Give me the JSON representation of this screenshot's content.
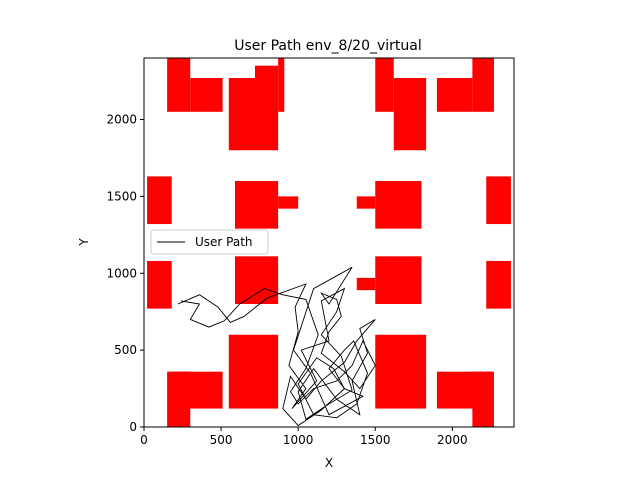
{
  "chart_data": {
    "type": "line",
    "title": "User Path env_8/20_virtual",
    "xlabel": "X",
    "ylabel": "Y",
    "xlim": [
      0,
      2400
    ],
    "ylim": [
      0,
      2400
    ],
    "xticks": [
      0,
      500,
      1000,
      1500,
      2000
    ],
    "yticks": [
      0,
      500,
      1000,
      1500,
      2000
    ],
    "grid": false,
    "legend": {
      "location": "center-left",
      "entries": [
        "User Path"
      ]
    },
    "obstacle_color": "#ff0000",
    "path_color": "#000000",
    "obstacles": [
      {
        "x0": 150,
        "x1": 300,
        "y0": 2050,
        "y1": 2400
      },
      {
        "x0": 300,
        "x1": 510,
        "y0": 2050,
        "y1": 2270
      },
      {
        "x0": 550,
        "x1": 720,
        "y0": 1800,
        "y1": 2270
      },
      {
        "x0": 720,
        "x1": 870,
        "y0": 1800,
        "y1": 2350
      },
      {
        "x0": 870,
        "x1": 910,
        "y0": 2050,
        "y1": 2400
      },
      {
        "x0": 1500,
        "x1": 1620,
        "y0": 2050,
        "y1": 2400
      },
      {
        "x0": 1620,
        "x1": 1830,
        "y0": 1800,
        "y1": 2270
      },
      {
        "x0": 1900,
        "x1": 2130,
        "y0": 2050,
        "y1": 2270
      },
      {
        "x0": 2130,
        "x1": 2270,
        "y0": 2050,
        "y1": 2400
      },
      {
        "x0": 20,
        "x1": 180,
        "y0": 1320,
        "y1": 1630
      },
      {
        "x0": 590,
        "x1": 870,
        "y0": 1290,
        "y1": 1600
      },
      {
        "x0": 870,
        "x1": 1000,
        "y0": 1420,
        "y1": 1500
      },
      {
        "x0": 1380,
        "x1": 1500,
        "y0": 1420,
        "y1": 1500
      },
      {
        "x0": 1500,
        "x1": 1800,
        "y0": 1290,
        "y1": 1600
      },
      {
        "x0": 2220,
        "x1": 2380,
        "y0": 1320,
        "y1": 1630
      },
      {
        "x0": 20,
        "x1": 180,
        "y0": 770,
        "y1": 1080
      },
      {
        "x0": 590,
        "x1": 870,
        "y0": 800,
        "y1": 1110
      },
      {
        "x0": 1380,
        "x1": 1500,
        "y0": 890,
        "y1": 970
      },
      {
        "x0": 1500,
        "x1": 1800,
        "y0": 800,
        "y1": 1110
      },
      {
        "x0": 2220,
        "x1": 2380,
        "y0": 770,
        "y1": 1080
      },
      {
        "x0": 550,
        "x1": 870,
        "y0": 120,
        "y1": 600
      },
      {
        "x0": 180,
        "x1": 510,
        "y0": 120,
        "y1": 360
      },
      {
        "x0": 150,
        "x1": 300,
        "y0": 0,
        "y1": 360
      },
      {
        "x0": 1500,
        "x1": 1830,
        "y0": 120,
        "y1": 600
      },
      {
        "x0": 1900,
        "x1": 2250,
        "y0": 120,
        "y1": 360
      },
      {
        "x0": 2130,
        "x1": 2270,
        "y0": 0,
        "y1": 360
      }
    ],
    "series": [
      {
        "name": "User Path",
        "points": [
          [
            220,
            800
          ],
          [
            360,
            860
          ],
          [
            480,
            780
          ],
          [
            560,
            680
          ],
          [
            650,
            720
          ],
          [
            800,
            840
          ],
          [
            1050,
            930
          ],
          [
            980,
            780
          ],
          [
            1000,
            620
          ],
          [
            940,
            400
          ],
          [
            1050,
            250
          ],
          [
            960,
            120
          ],
          [
            1120,
            300
          ],
          [
            1020,
            500
          ],
          [
            1200,
            560
          ],
          [
            1150,
            820
          ],
          [
            1300,
            900
          ],
          [
            1250,
            750
          ],
          [
            1150,
            600
          ],
          [
            1280,
            460
          ],
          [
            1350,
            240
          ],
          [
            1200,
            150
          ],
          [
            1050,
            50
          ],
          [
            1000,
            230
          ],
          [
            1100,
            380
          ],
          [
            1250,
            180
          ],
          [
            1400,
            80
          ],
          [
            1350,
            300
          ],
          [
            1450,
            480
          ],
          [
            1400,
            640
          ],
          [
            1500,
            700
          ],
          [
            1380,
            560
          ],
          [
            1300,
            420
          ],
          [
            1150,
            300
          ],
          [
            1050,
            180
          ],
          [
            950,
            330
          ],
          [
            900,
            120
          ],
          [
            1000,
            10
          ],
          [
            1150,
            110
          ],
          [
            1300,
            250
          ],
          [
            1230,
            380
          ],
          [
            1120,
            450
          ],
          [
            1000,
            280
          ],
          [
            1100,
            80
          ],
          [
            1250,
            60
          ],
          [
            1380,
            150
          ],
          [
            1450,
            350
          ],
          [
            1360,
            560
          ],
          [
            1300,
            500
          ],
          [
            1200,
            380
          ],
          [
            1300,
            250
          ],
          [
            1420,
            200
          ],
          [
            1200,
            80
          ],
          [
            1080,
            350
          ],
          [
            970,
            500
          ],
          [
            1100,
            900
          ],
          [
            1280,
            1000
          ],
          [
            1350,
            1040
          ],
          [
            1200,
            800
          ],
          [
            1150,
            870
          ],
          [
            1250,
            830
          ],
          [
            1280,
            720
          ],
          [
            1200,
            620
          ],
          [
            1150,
            480
          ],
          [
            1300,
            360
          ],
          [
            1400,
            250
          ],
          [
            1500,
            400
          ],
          [
            1420,
            560
          ],
          [
            1350,
            400
          ],
          [
            1250,
            300
          ],
          [
            1100,
            250
          ],
          [
            1000,
            150
          ],
          [
            950,
            230
          ],
          [
            1050,
            380
          ],
          [
            1130,
            600
          ],
          [
            1050,
            830
          ],
          [
            900,
            860
          ],
          [
            780,
            900
          ],
          [
            620,
            800
          ],
          [
            520,
            690
          ],
          [
            420,
            650
          ],
          [
            300,
            700
          ],
          [
            360,
            800
          ],
          [
            240,
            820
          ]
        ]
      }
    ]
  }
}
